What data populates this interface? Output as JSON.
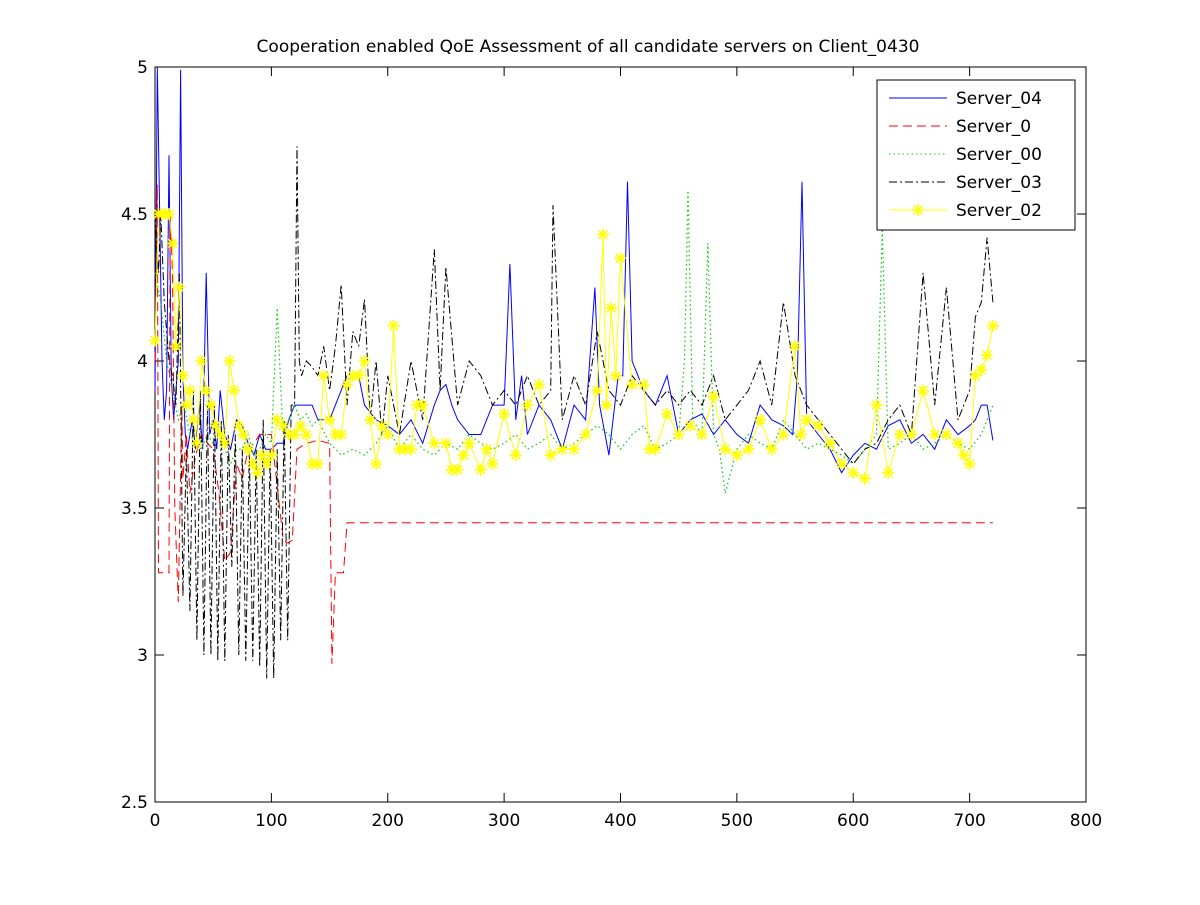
{
  "chart_data": {
    "type": "line",
    "title": "Cooperation enabled QoE Assessment of all candidate servers on Client_0430",
    "xlabel": "",
    "ylabel": "",
    "xlim": [
      0,
      800
    ],
    "ylim": [
      2.5,
      5
    ],
    "xticks": [
      0,
      100,
      200,
      300,
      400,
      500,
      600,
      700,
      800
    ],
    "yticks": [
      2.5,
      3,
      3.5,
      4,
      4.5,
      5
    ],
    "grid": false,
    "legend_position": "top-right",
    "series": [
      {
        "name": "Server_04",
        "color": "#0000ff",
        "style": "solid",
        "marker": "none",
        "x": [
          0,
          2,
          4,
          6,
          8,
          10,
          12,
          14,
          16,
          18,
          20,
          22,
          24,
          26,
          28,
          30,
          32,
          35,
          38,
          41,
          44,
          47,
          50,
          53,
          56,
          60,
          65,
          70,
          75,
          80,
          85,
          90,
          95,
          100,
          105,
          110,
          115,
          120,
          125,
          130,
          135,
          140,
          145,
          150,
          155,
          160,
          165,
          170,
          175,
          180,
          190,
          200,
          210,
          220,
          230,
          240,
          245,
          250,
          255,
          260,
          270,
          280,
          290,
          300,
          305,
          310,
          315,
          320,
          330,
          340,
          350,
          360,
          370,
          378,
          382,
          390,
          398,
          402,
          406,
          410,
          420,
          430,
          440,
          450,
          460,
          470,
          480,
          490,
          500,
          510,
          520,
          530,
          540,
          548,
          552,
          556,
          560,
          570,
          580,
          590,
          600,
          610,
          620,
          630,
          640,
          650,
          660,
          670,
          680,
          690,
          700,
          705,
          710,
          715,
          720
        ],
        "y": [
          3.9,
          5.0,
          4.5,
          4.0,
          3.8,
          3.9,
          4.7,
          3.95,
          3.8,
          3.9,
          4.0,
          4.99,
          3.95,
          3.75,
          3.7,
          3.75,
          3.8,
          3.7,
          3.85,
          3.7,
          4.3,
          3.75,
          3.8,
          3.7,
          3.9,
          3.75,
          3.7,
          3.8,
          3.78,
          3.72,
          3.68,
          3.75,
          3.7,
          3.7,
          3.72,
          3.72,
          3.8,
          3.85,
          3.85,
          3.85,
          3.85,
          3.8,
          3.8,
          3.8,
          3.85,
          3.9,
          3.95,
          3.95,
          3.95,
          3.85,
          3.8,
          3.78,
          3.75,
          3.8,
          3.72,
          3.85,
          3.9,
          3.92,
          3.85,
          3.8,
          3.75,
          3.75,
          3.85,
          3.85,
          4.33,
          3.8,
          3.95,
          3.75,
          3.85,
          3.8,
          3.7,
          3.85,
          3.8,
          4.25,
          3.85,
          3.68,
          3.95,
          3.95,
          4.61,
          4.0,
          3.9,
          3.85,
          3.95,
          3.75,
          3.8,
          3.82,
          3.75,
          3.8,
          3.75,
          3.72,
          3.85,
          3.8,
          3.78,
          3.75,
          3.95,
          4.61,
          3.8,
          3.75,
          3.7,
          3.62,
          3.68,
          3.72,
          3.7,
          3.78,
          3.8,
          3.72,
          3.75,
          3.7,
          3.8,
          3.75,
          3.78,
          3.8,
          3.85,
          3.85,
          3.73
        ]
      },
      {
        "name": "Server_0",
        "color": "#ff0000",
        "style": "dashed",
        "marker": "none",
        "x": [
          0,
          2,
          3,
          4,
          12,
          13,
          15,
          17,
          20,
          23,
          24,
          27,
          30,
          35,
          40,
          45,
          50,
          55,
          60,
          65,
          70,
          75,
          80,
          85,
          90,
          100,
          110,
          113,
          118,
          122,
          130,
          140,
          150,
          152,
          155,
          162,
          165,
          720
        ],
        "y": [
          4.0,
          4.6,
          3.28,
          3.28,
          3.28,
          4.5,
          4.3,
          3.5,
          3.18,
          3.85,
          3.6,
          3.75,
          3.55,
          3.68,
          3.75,
          3.72,
          3.7,
          3.55,
          3.32,
          3.35,
          3.65,
          3.6,
          3.7,
          3.72,
          3.75,
          3.75,
          3.4,
          3.38,
          3.39,
          3.7,
          3.72,
          3.73,
          3.72,
          2.97,
          3.28,
          3.28,
          3.45,
          3.45
        ]
      },
      {
        "name": "Server_00",
        "color": "#00cc00",
        "style": "dotted",
        "marker": "none",
        "x": [
          0,
          5,
          10,
          15,
          20,
          25,
          30,
          35,
          40,
          45,
          50,
          55,
          60,
          65,
          70,
          75,
          80,
          85,
          90,
          95,
          100,
          105,
          110,
          115,
          120,
          125,
          130,
          135,
          140,
          150,
          160,
          170,
          180,
          190,
          200,
          210,
          220,
          230,
          240,
          250,
          260,
          270,
          280,
          290,
          300,
          310,
          320,
          330,
          340,
          350,
          360,
          370,
          380,
          390,
          400,
          410,
          420,
          430,
          440,
          450,
          455,
          458,
          462,
          470,
          475,
          480,
          485,
          490,
          500,
          510,
          520,
          530,
          540,
          550,
          560,
          570,
          580,
          590,
          600,
          610,
          620,
          625,
          630,
          640,
          650,
          660,
          670,
          680,
          690,
          700,
          710,
          720
        ],
        "y": [
          4.3,
          4.2,
          4.0,
          3.9,
          3.8,
          3.85,
          3.75,
          3.72,
          3.7,
          3.75,
          3.72,
          3.8,
          3.7,
          3.65,
          3.7,
          3.7,
          3.75,
          3.68,
          3.7,
          3.75,
          3.72,
          4.18,
          3.75,
          3.8,
          3.85,
          3.8,
          3.82,
          3.78,
          3.8,
          3.72,
          3.68,
          3.7,
          3.68,
          3.72,
          3.78,
          3.7,
          3.75,
          3.7,
          3.68,
          3.72,
          3.7,
          3.75,
          3.72,
          3.7,
          3.72,
          3.75,
          3.7,
          3.72,
          3.75,
          3.7,
          3.72,
          3.75,
          3.78,
          3.75,
          3.7,
          3.75,
          3.78,
          3.7,
          3.72,
          3.75,
          4.0,
          4.58,
          3.8,
          3.75,
          4.4,
          3.75,
          3.7,
          3.55,
          3.7,
          3.75,
          3.72,
          3.7,
          3.8,
          3.75,
          3.7,
          3.72,
          3.7,
          3.68,
          3.65,
          3.7,
          3.75,
          4.45,
          3.7,
          3.72,
          3.75,
          3.7,
          3.72,
          3.75,
          3.72,
          3.7,
          3.75,
          3.85
        ]
      },
      {
        "name": "Server_03",
        "color": "#000000",
        "style": "dashdot",
        "marker": "none",
        "x": [
          0,
          3,
          5,
          8,
          12,
          15,
          18,
          21,
          24,
          27,
          30,
          33,
          36,
          39,
          42,
          45,
          48,
          51,
          54,
          57,
          60,
          63,
          66,
          69,
          72,
          75,
          78,
          81,
          84,
          87,
          90,
          93,
          96,
          99,
          102,
          105,
          108,
          111,
          114,
          117,
          120,
          122,
          124,
          126,
          130,
          135,
          140,
          145,
          150,
          155,
          160,
          165,
          170,
          175,
          180,
          185,
          190,
          195,
          200,
          210,
          220,
          230,
          240,
          245,
          250,
          260,
          270,
          280,
          290,
          300,
          310,
          320,
          330,
          340,
          342,
          350,
          360,
          370,
          380,
          390,
          400,
          410,
          420,
          430,
          440,
          450,
          460,
          470,
          480,
          490,
          500,
          510,
          520,
          530,
          540,
          550,
          560,
          570,
          580,
          590,
          600,
          610,
          620,
          630,
          640,
          650,
          660,
          670,
          680,
          690,
          700,
          705,
          710,
          715,
          720
        ],
        "y": [
          4.5,
          4.3,
          4.5,
          4.2,
          4.0,
          3.95,
          3.85,
          4.3,
          3.2,
          3.7,
          3.15,
          3.9,
          3.05,
          3.9,
          3.0,
          3.85,
          3.0,
          3.85,
          2.98,
          3.8,
          2.98,
          3.75,
          3.3,
          3.75,
          3.0,
          3.7,
          2.98,
          3.7,
          2.98,
          3.7,
          2.96,
          3.8,
          2.92,
          3.7,
          2.92,
          3.7,
          3.05,
          3.8,
          3.05,
          3.85,
          3.85,
          4.73,
          4.0,
          3.95,
          4.0,
          3.98,
          3.95,
          4.05,
          3.9,
          4.05,
          4.26,
          3.85,
          4.1,
          4.05,
          4.21,
          3.8,
          4.0,
          3.75,
          3.95,
          3.75,
          4.0,
          3.8,
          4.38,
          3.9,
          4.32,
          3.85,
          4.0,
          3.95,
          3.85,
          3.9,
          3.85,
          3.95,
          3.85,
          3.9,
          4.53,
          3.8,
          3.95,
          3.85,
          4.1,
          3.9,
          3.85,
          3.95,
          3.9,
          3.85,
          3.9,
          3.85,
          3.9,
          3.85,
          3.95,
          3.8,
          3.85,
          3.9,
          4.0,
          3.85,
          4.2,
          3.95,
          3.85,
          3.8,
          3.75,
          3.7,
          3.65,
          3.7,
          3.72,
          3.8,
          3.85,
          3.75,
          4.3,
          3.85,
          4.25,
          3.8,
          3.9,
          4.15,
          4.2,
          4.42,
          4.2
        ]
      },
      {
        "name": "Server_02",
        "color": "#ffff00",
        "style": "solid",
        "marker": "star",
        "x": [
          0,
          3,
          6,
          9,
          12,
          15,
          18,
          21,
          24,
          27,
          30,
          33,
          36,
          40,
          44,
          48,
          52,
          56,
          60,
          64,
          68,
          72,
          76,
          80,
          84,
          88,
          92,
          96,
          100,
          105,
          110,
          115,
          120,
          125,
          130,
          135,
          140,
          145,
          150,
          155,
          160,
          165,
          170,
          175,
          180,
          185,
          190,
          195,
          200,
          205,
          210,
          215,
          220,
          225,
          230,
          240,
          250,
          255,
          260,
          265,
          270,
          280,
          285,
          290,
          300,
          310,
          320,
          330,
          340,
          350,
          360,
          370,
          380,
          385,
          388,
          392,
          396,
          400,
          410,
          420,
          425,
          430,
          440,
          450,
          460,
          470,
          480,
          490,
          500,
          510,
          520,
          530,
          540,
          550,
          555,
          560,
          570,
          580,
          590,
          600,
          610,
          620,
          630,
          640,
          650,
          660,
          670,
          680,
          690,
          695,
          700,
          705,
          710,
          715,
          720
        ],
        "y": [
          4.07,
          4.5,
          4.5,
          4.5,
          4.5,
          4.4,
          4.05,
          4.25,
          3.95,
          3.85,
          3.9,
          3.8,
          3.72,
          4.0,
          3.9,
          3.85,
          3.78,
          3.75,
          3.72,
          4.0,
          3.9,
          3.78,
          3.75,
          3.7,
          3.65,
          3.62,
          3.68,
          3.65,
          3.68,
          3.8,
          3.78,
          3.75,
          3.75,
          3.78,
          3.75,
          3.65,
          3.65,
          3.95,
          3.8,
          3.75,
          3.75,
          3.92,
          3.95,
          3.95,
          4.0,
          3.8,
          3.65,
          3.78,
          3.75,
          4.12,
          3.7,
          3.7,
          3.7,
          3.85,
          3.85,
          3.72,
          3.72,
          3.63,
          3.63,
          3.68,
          3.72,
          3.63,
          3.7,
          3.65,
          3.82,
          3.68,
          3.85,
          3.92,
          3.68,
          3.7,
          3.7,
          3.75,
          3.9,
          4.43,
          3.85,
          4.18,
          3.95,
          4.35,
          3.92,
          3.92,
          3.7,
          3.7,
          3.82,
          3.75,
          3.78,
          3.75,
          3.88,
          3.7,
          3.68,
          3.7,
          3.8,
          3.7,
          3.75,
          4.05,
          3.75,
          3.8,
          3.78,
          3.72,
          3.65,
          3.62,
          3.6,
          3.85,
          3.62,
          3.75,
          3.75,
          3.9,
          3.75,
          3.75,
          3.72,
          3.68,
          3.65,
          3.95,
          3.97,
          4.02,
          4.12
        ]
      }
    ]
  }
}
